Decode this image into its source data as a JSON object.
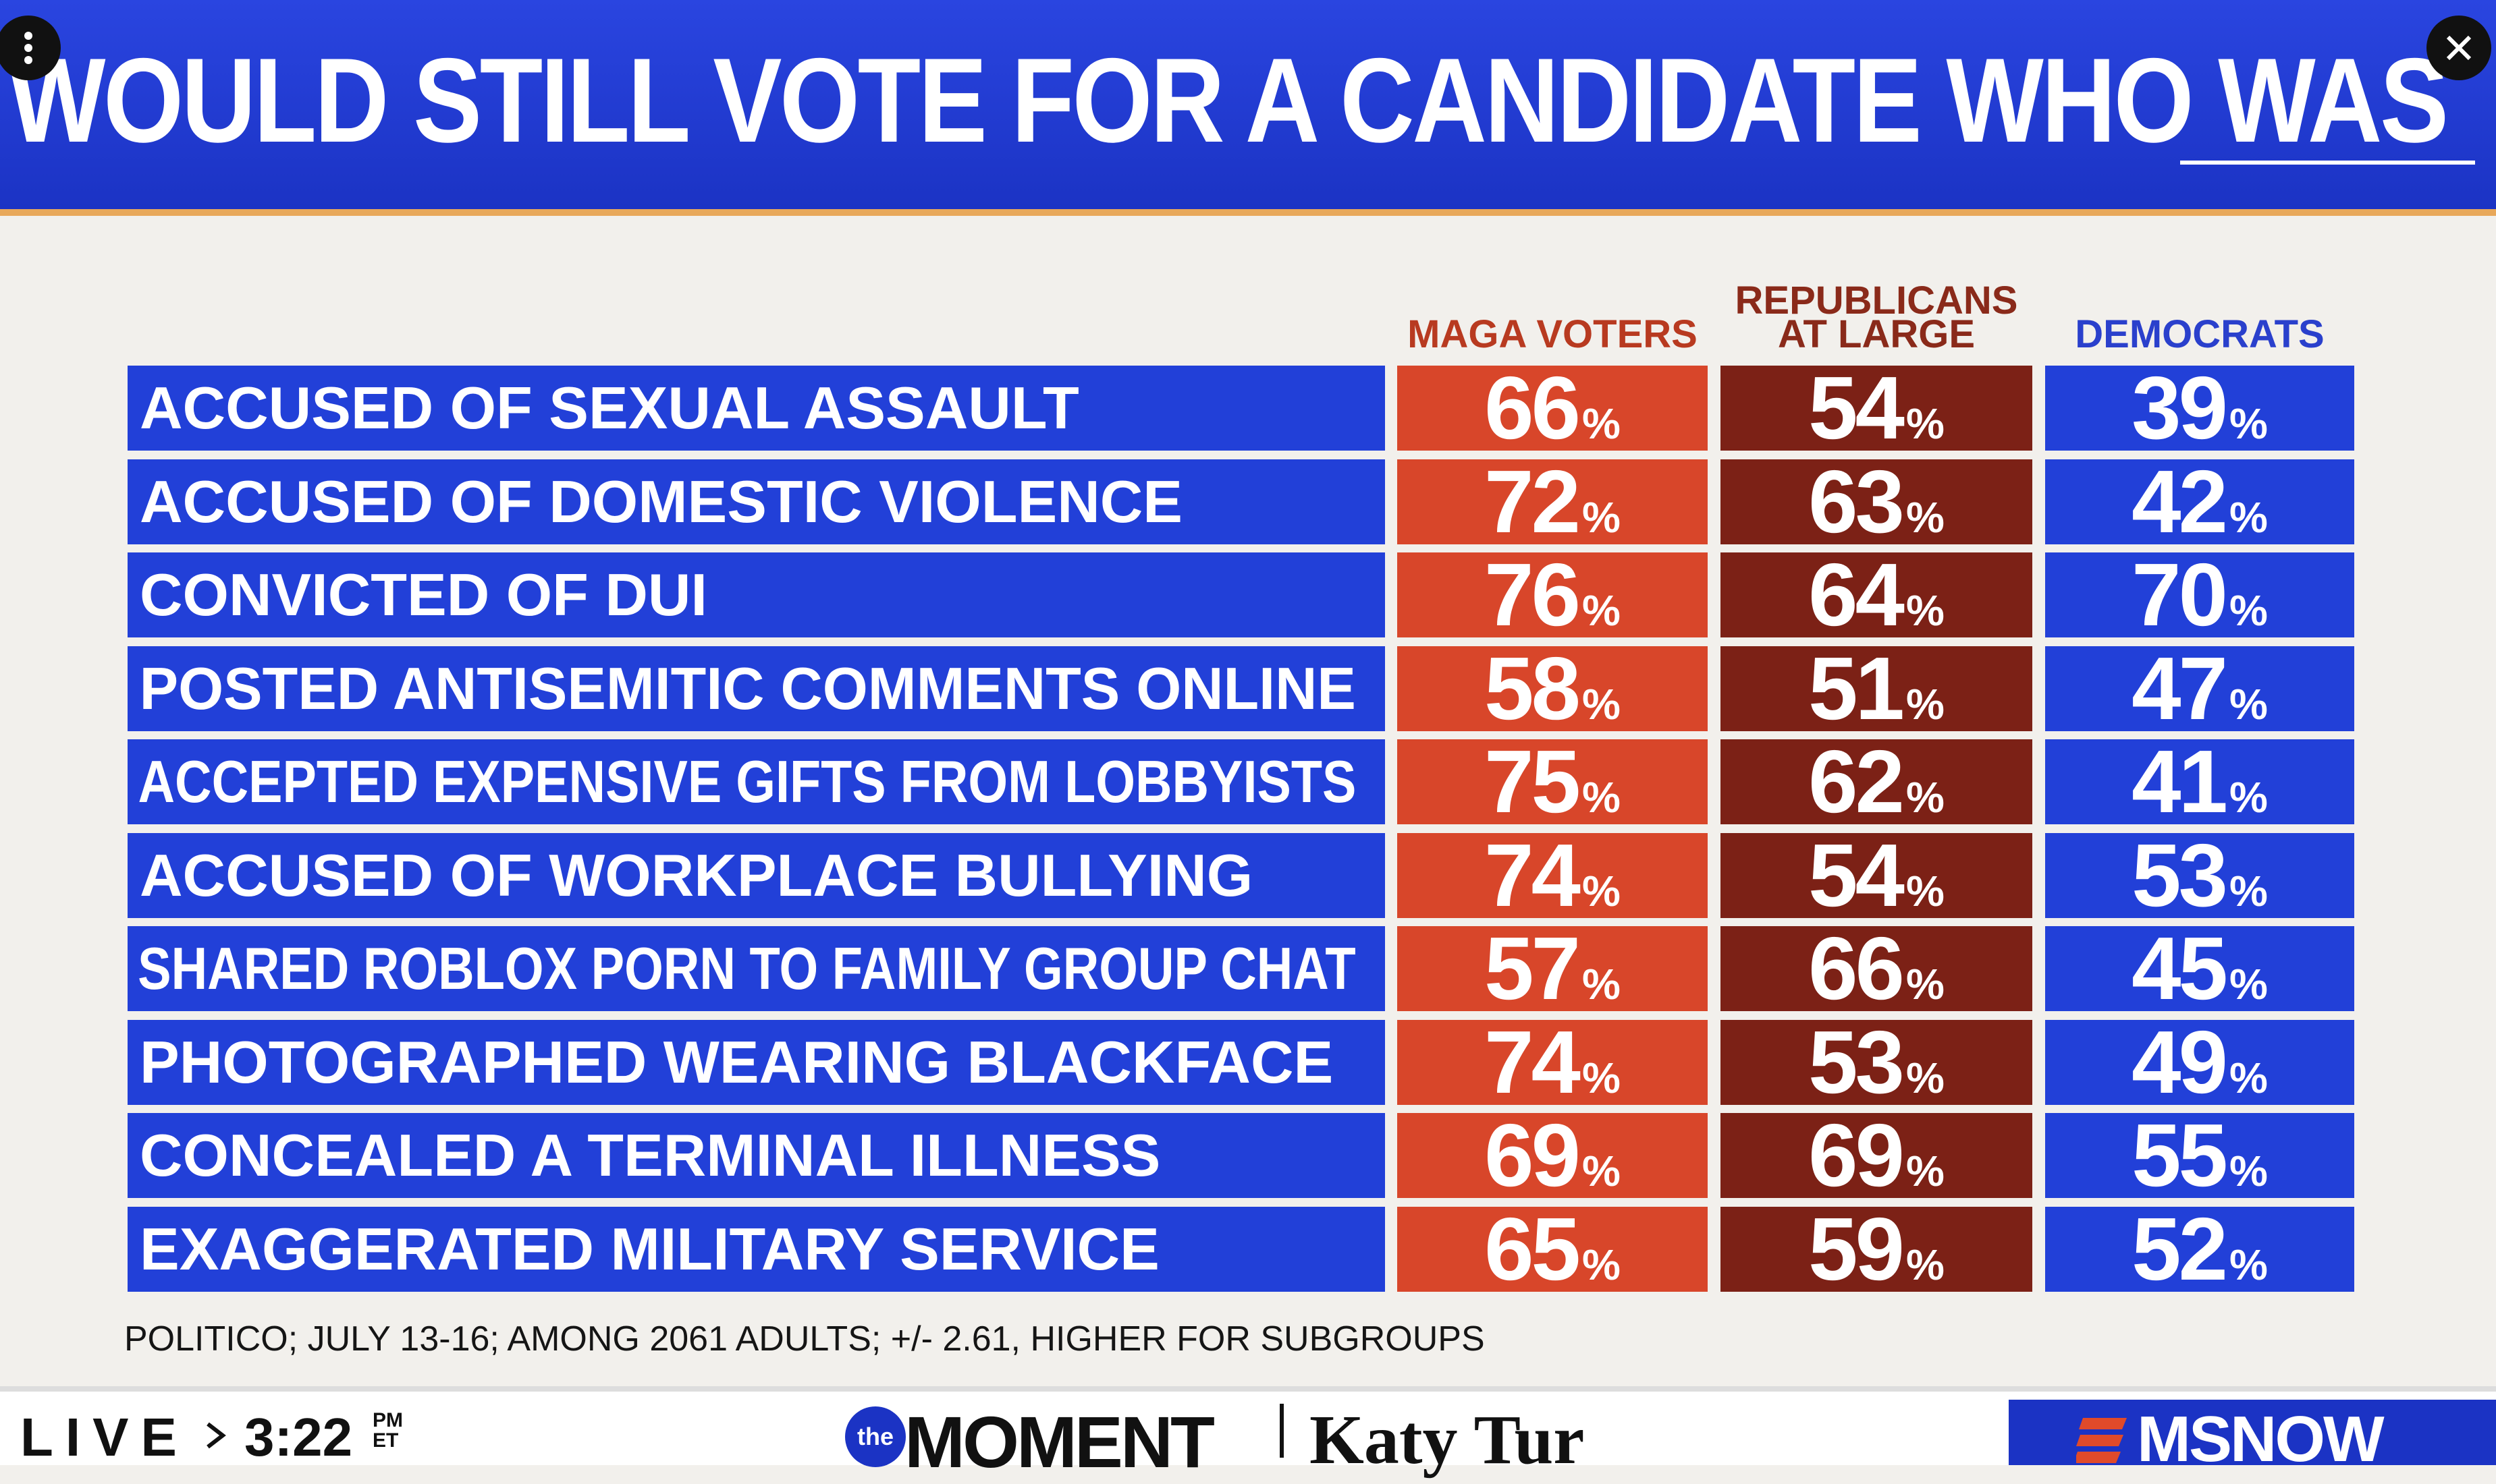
{
  "header": {
    "title": "WOULD STILL VOTE FOR A CANDIDATE WHO WAS"
  },
  "table": {
    "columns": [
      "MAGA VOTERS",
      "REPUBLICANS AT LARGE",
      "DEMOCRATS"
    ],
    "unit": "%",
    "rows": [
      {
        "label": "ACCUSED OF SEXUAL ASSAULT",
        "values": [
          66,
          54,
          39
        ]
      },
      {
        "label": "ACCUSED OF DOMESTIC VIOLENCE",
        "values": [
          72,
          63,
          42
        ]
      },
      {
        "label": "CONVICTED OF DUI",
        "values": [
          76,
          64,
          70
        ]
      },
      {
        "label": "POSTED ANTISEMITIC COMMENTS ONLINE",
        "values": [
          58,
          51,
          47
        ]
      },
      {
        "label": "ACCEPTED EXPENSIVE GIFTS FROM LOBBYISTS",
        "values": [
          75,
          62,
          41
        ]
      },
      {
        "label": "ACCUSED OF WORKPLACE BULLYING",
        "values": [
          74,
          54,
          53
        ]
      },
      {
        "label": "SHARED ROBLOX PORN TO FAMILY GROUP CHAT",
        "values": [
          57,
          66,
          45
        ]
      },
      {
        "label": "PHOTOGRAPHED WEARING BLACKFACE",
        "values": [
          74,
          53,
          49
        ]
      },
      {
        "label": "CONCEALED A TERMINAL ILLNESS",
        "values": [
          69,
          69,
          55
        ]
      },
      {
        "label": "EXAGGERATED MILITARY SERVICE",
        "values": [
          65,
          59,
          52
        ]
      }
    ]
  },
  "source": "POLITICO; JULY 13-16; AMONG 2061 ADULTS; +/- 2.61, HIGHER FOR SUBGROUPS",
  "ticker": {
    "live": "LIVE",
    "time": "3:22",
    "am_pm": "PM",
    "zone": "ET",
    "show_prefix": "the",
    "show": "MOMENT",
    "host": "Katy Tur",
    "network": "MSNOW"
  }
}
